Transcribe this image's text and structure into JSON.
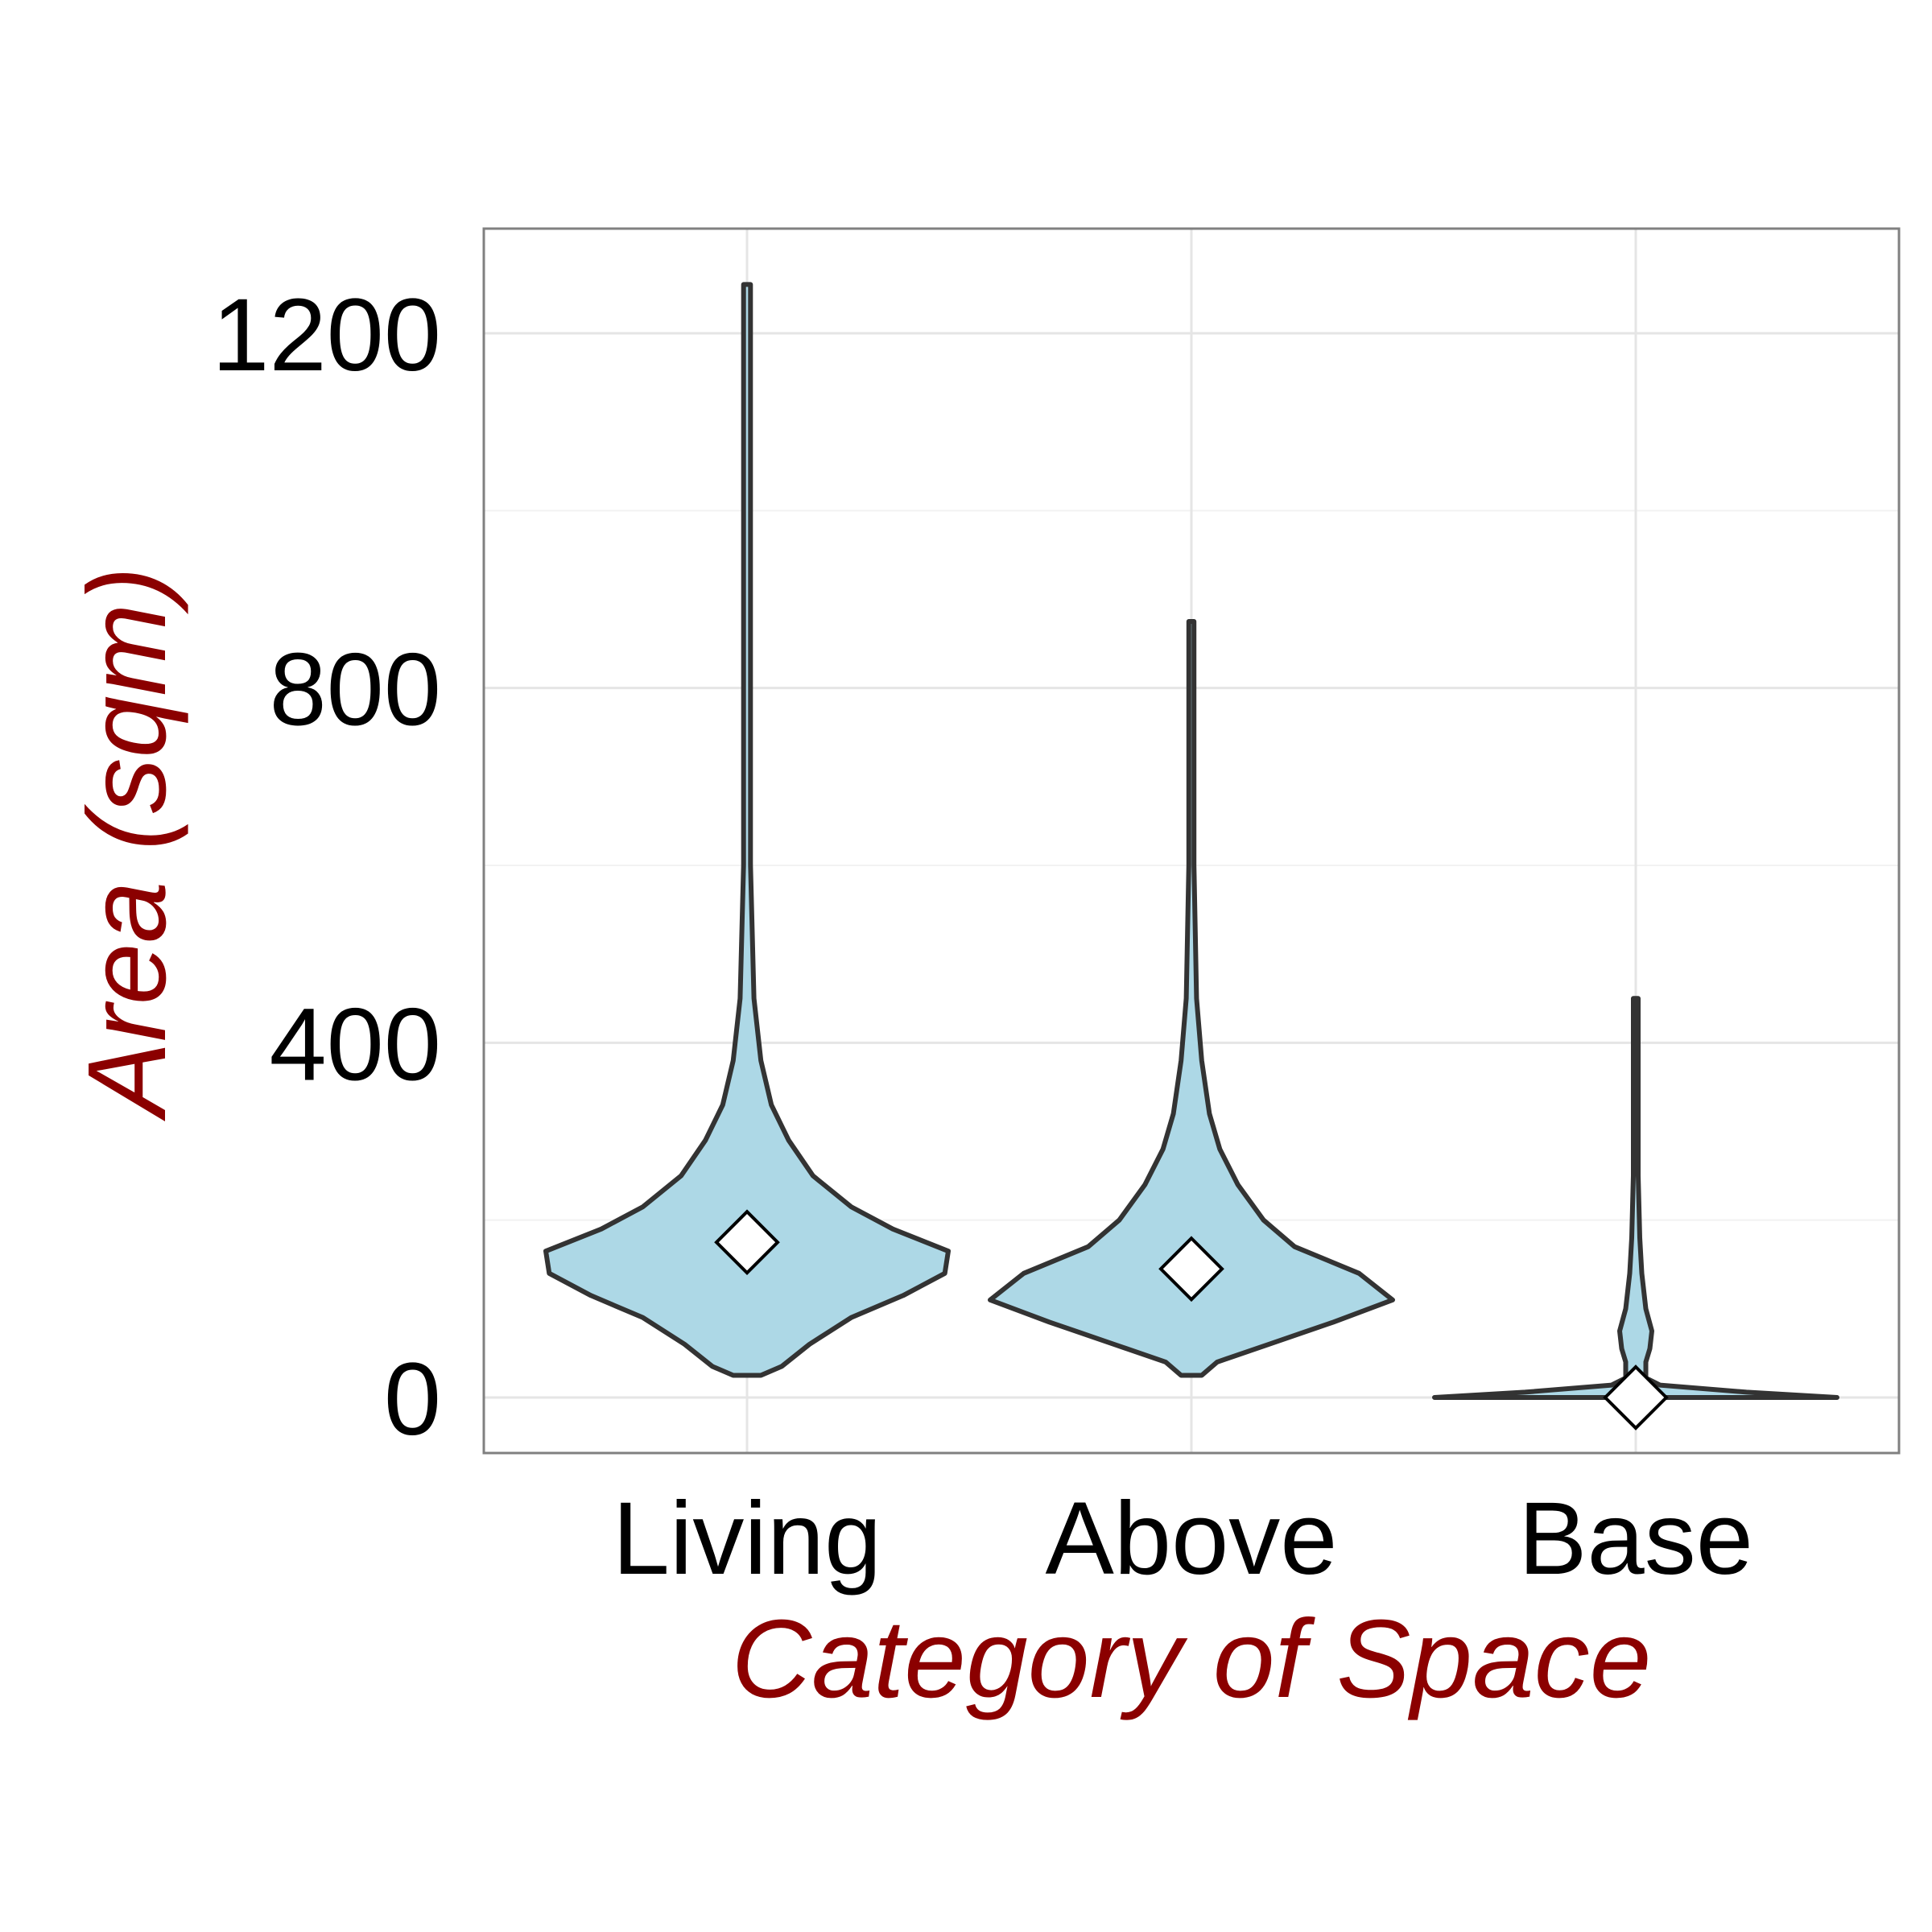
{
  "chart_data": {
    "type": "violin",
    "xlabel": "Category of Space",
    "ylabel": "Area (sqm)",
    "categories": [
      "Living",
      "Above",
      "Base"
    ],
    "yticks": [
      0,
      400,
      800,
      1200
    ],
    "ylim": [
      -60,
      1320
    ],
    "grid": true,
    "legend": "none",
    "colors": {
      "violin_fill": "#add8e6",
      "violin_outline": "#333333",
      "axis_title": "#8b0000",
      "panel_border": "#808080",
      "grid_major": "#e5e5e5",
      "grid_minor": "#f2f2f2",
      "mean_marker_fill": "#ffffff",
      "mean_marker_stroke": "#000000"
    },
    "series": [
      {
        "category": "Living",
        "min": 25,
        "max": 1255,
        "mean": 175,
        "density": [
          [
            25,
            0.04
          ],
          [
            35,
            0.1
          ],
          [
            60,
            0.18
          ],
          [
            90,
            0.3
          ],
          [
            115,
            0.45
          ],
          [
            140,
            0.57
          ],
          [
            165,
            0.58
          ],
          [
            190,
            0.42
          ],
          [
            215,
            0.3
          ],
          [
            250,
            0.19
          ],
          [
            290,
            0.12
          ],
          [
            330,
            0.07
          ],
          [
            380,
            0.04
          ],
          [
            450,
            0.02
          ],
          [
            600,
            0.01
          ],
          [
            1255,
            0.01
          ]
        ]
      },
      {
        "category": "Above",
        "min": 25,
        "max": 875,
        "mean": 145,
        "density": [
          [
            25,
            0.04
          ],
          [
            40,
            0.1
          ],
          [
            60,
            0.3
          ],
          [
            85,
            0.55
          ],
          [
            110,
            0.78
          ],
          [
            140,
            0.65
          ],
          [
            170,
            0.4
          ],
          [
            200,
            0.28
          ],
          [
            240,
            0.18
          ],
          [
            280,
            0.11
          ],
          [
            320,
            0.07
          ],
          [
            380,
            0.04
          ],
          [
            450,
            0.02
          ],
          [
            600,
            0.01
          ],
          [
            875,
            0.01
          ]
        ]
      },
      {
        "category": "Base",
        "min": 0,
        "max": 450,
        "mean": 0,
        "density": [
          [
            0,
            1.0
          ],
          [
            6,
            0.55
          ],
          [
            14,
            0.12
          ],
          [
            22,
            0.05
          ],
          [
            40,
            0.05
          ],
          [
            55,
            0.07
          ],
          [
            75,
            0.08
          ],
          [
            100,
            0.05
          ],
          [
            120,
            0.04
          ],
          [
            140,
            0.03
          ],
          [
            180,
            0.02
          ],
          [
            250,
            0.01
          ],
          [
            450,
            0.01
          ]
        ]
      }
    ]
  }
}
